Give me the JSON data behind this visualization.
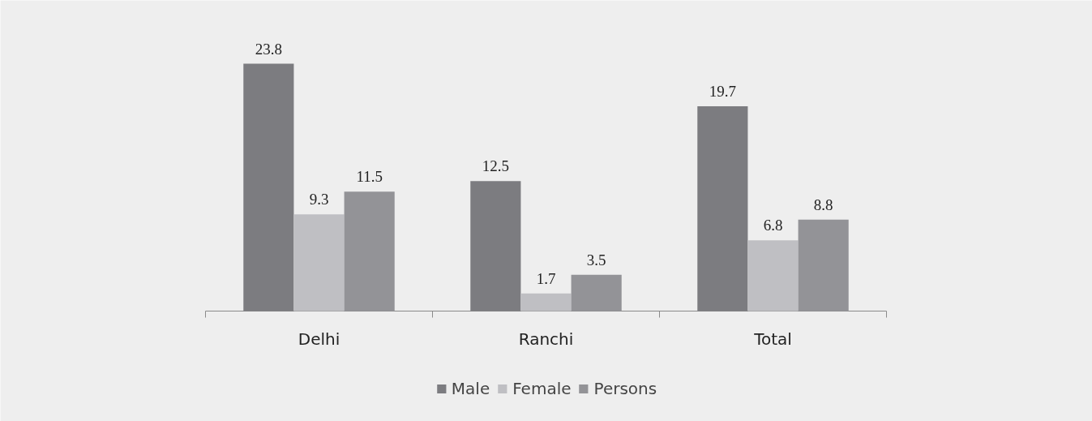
{
  "chart_data": {
    "type": "bar",
    "categories": [
      "Delhi",
      "Ranchi",
      "Total"
    ],
    "series": [
      {
        "name": "Male",
        "color": "#7c7c80",
        "values": [
          23.8,
          12.5,
          19.7
        ]
      },
      {
        "name": "Female",
        "color": "#bfbfc3",
        "values": [
          9.3,
          1.7,
          6.8
        ]
      },
      {
        "name": "Persons",
        "color": "#939397",
        "values": [
          11.5,
          3.5,
          8.8
        ]
      }
    ],
    "data_labels": true,
    "legend": "bottom"
  }
}
